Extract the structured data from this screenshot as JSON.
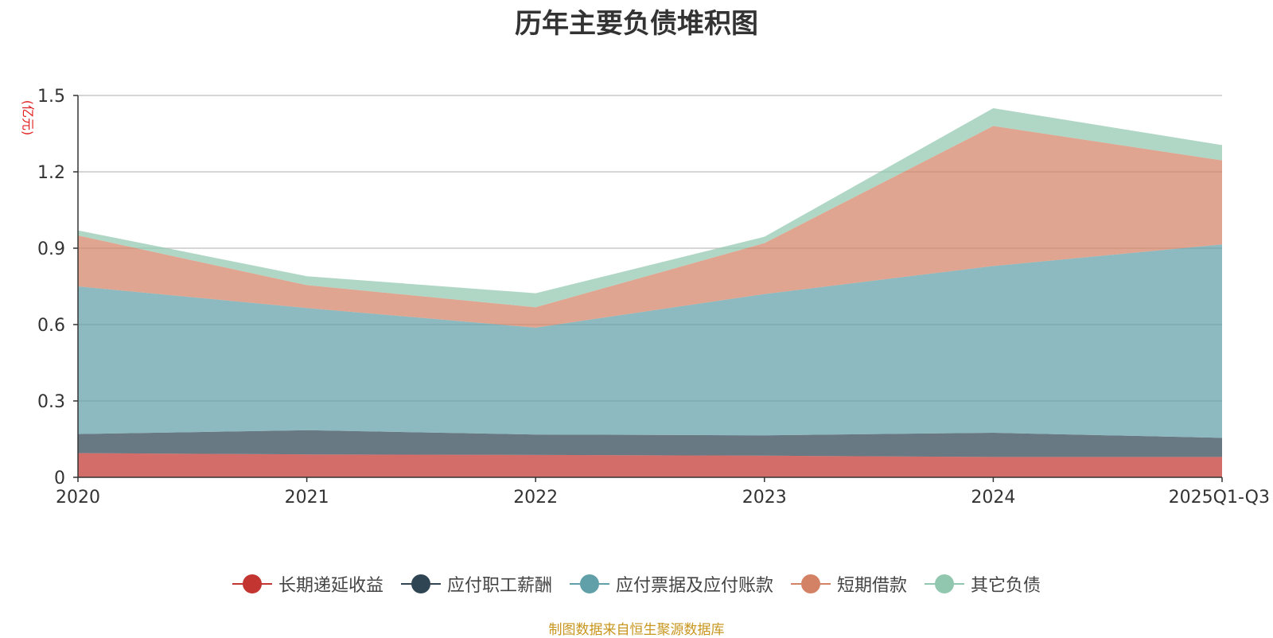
{
  "chart_data": {
    "type": "area",
    "stacked": true,
    "title": "历年主要负债堆积图",
    "ylabel": "(亿元)",
    "xlabel": "",
    "categories": [
      "2020",
      "2021",
      "2022",
      "2023",
      "2024",
      "2025Q1-Q3"
    ],
    "ylim": [
      0,
      1.5
    ],
    "yticks": [
      "0",
      "0.3",
      "0.6",
      "0.9",
      "1.2",
      "1.5"
    ],
    "grid": true,
    "legend_position": "bottom",
    "series": [
      {
        "name": "长期递延收益",
        "color": "#c23531",
        "values": [
          0.095,
          0.09,
          0.088,
          0.085,
          0.08,
          0.08
        ]
      },
      {
        "name": "应付职工薪酬",
        "color": "#2f4554",
        "values": [
          0.075,
          0.095,
          0.08,
          0.08,
          0.095,
          0.075
        ]
      },
      {
        "name": "应付票据及应付账款",
        "color": "#61a0a8",
        "values": [
          0.58,
          0.48,
          0.42,
          0.555,
          0.655,
          0.76
        ]
      },
      {
        "name": "短期借款",
        "color": "#d48265",
        "values": [
          0.2,
          0.09,
          0.08,
          0.2,
          0.55,
          0.33
        ]
      },
      {
        "name": "其它负债",
        "color": "#91c7ae",
        "values": [
          0.02,
          0.035,
          0.055,
          0.025,
          0.07,
          0.06
        ]
      }
    ]
  },
  "source_note": "制图数据来自恒生聚源数据库"
}
